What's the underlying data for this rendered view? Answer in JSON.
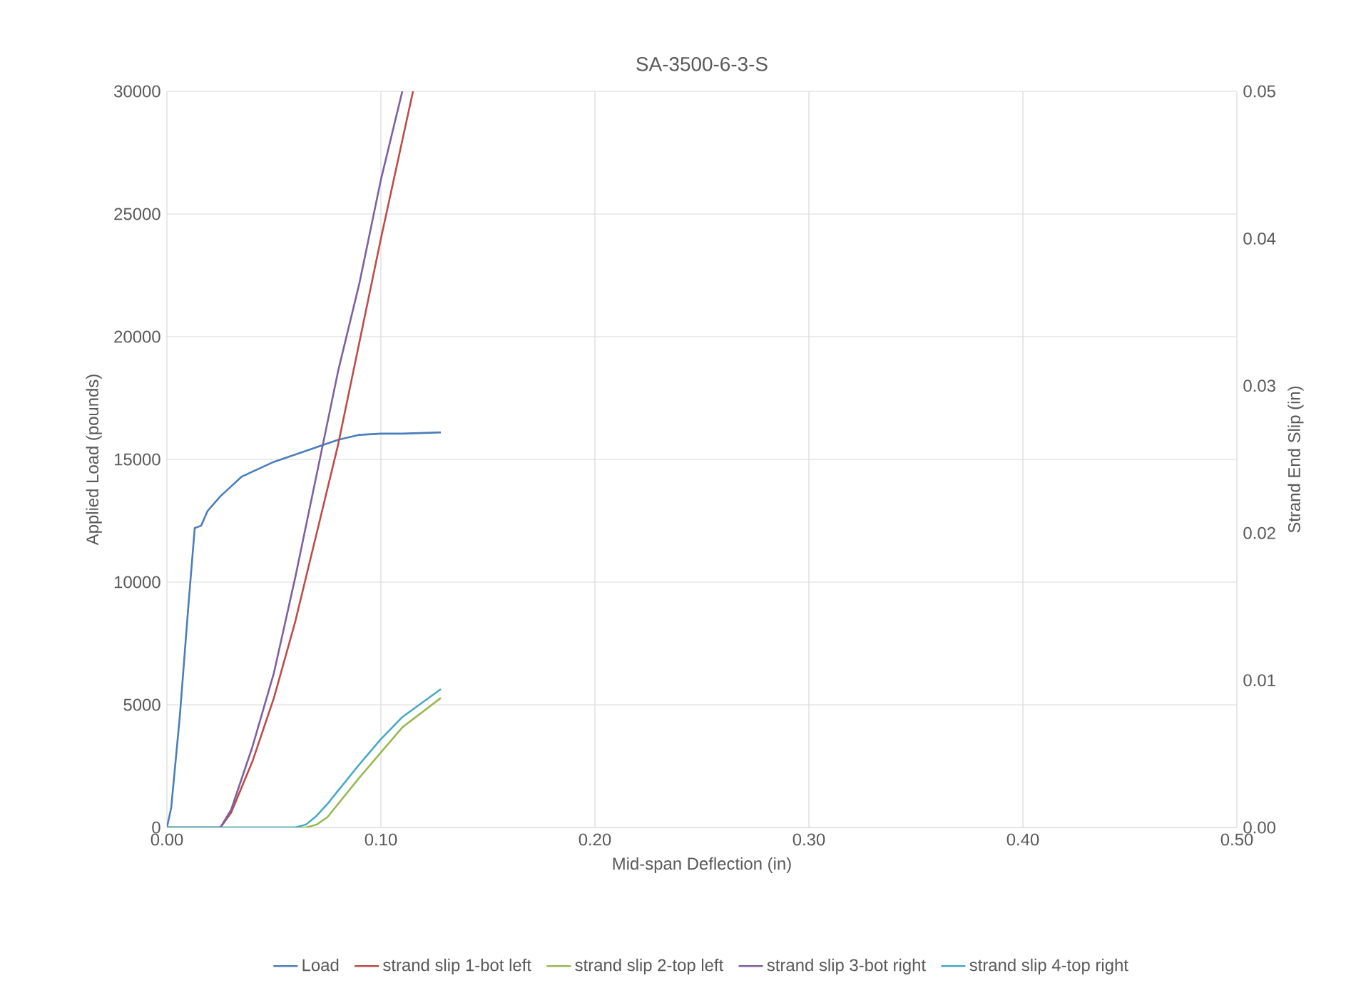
{
  "chart_data": {
    "type": "line",
    "title": "SA-3500-6-3-S",
    "xlabel": "Mid-span Deflection (in)",
    "ylabel": "Applied Load (pounds)",
    "y2label": "Strand End Slip (in)",
    "xlim": [
      0,
      0.5
    ],
    "xticks": [
      {
        "value": 0,
        "label": "0.00"
      },
      {
        "value": 0.1,
        "label": "0.10"
      },
      {
        "value": 0.2,
        "label": "0.20"
      },
      {
        "value": 0.3,
        "label": "0.30"
      },
      {
        "value": 0.4,
        "label": "0.40"
      },
      {
        "value": 0.5,
        "label": "0.50"
      }
    ],
    "ylim": [
      0,
      30000
    ],
    "yticks": [
      0,
      5000,
      10000,
      15000,
      20000,
      25000,
      30000
    ],
    "y2lim": [
      0,
      0.05
    ],
    "y2ticks": [
      {
        "value": 0,
        "label": "0.00"
      },
      {
        "value": 0.01,
        "label": "0.01"
      },
      {
        "value": 0.02,
        "label": "0.02"
      },
      {
        "value": 0.03,
        "label": "0.03"
      },
      {
        "value": 0.04,
        "label": "0.04"
      },
      {
        "value": 0.05,
        "label": "0.05"
      }
    ],
    "grid": true,
    "legend": "bottom",
    "marker": "none",
    "line_style": "solid",
    "series": [
      {
        "name": "Load",
        "color": "#4a7ebb",
        "x": [
          0,
          0.002,
          0.006,
          0.01,
          0.013,
          0.016,
          0.019,
          0.022,
          0.025,
          0.03,
          0.035,
          0.04,
          0.05,
          0.06,
          0.07,
          0.08,
          0.09,
          0.1,
          0.11,
          0.128
        ],
        "values": [
          0,
          800,
          4500,
          9000,
          12200,
          12300,
          12900,
          13200,
          13500,
          13900,
          14300,
          14500,
          14900,
          15200,
          15500,
          15800,
          16000,
          16050,
          16050,
          16100
        ]
      },
      {
        "name": "strand slip 1-bot left",
        "color": "#be4b48",
        "axis": "y2",
        "x": [
          0,
          0.025,
          0.03,
          0.04,
          0.05,
          0.06,
          0.07,
          0.08,
          0.09,
          0.1,
          0.115
        ],
        "values": [
          0,
          0,
          0.001,
          0.0045,
          0.0088,
          0.014,
          0.02,
          0.026,
          0.033,
          0.04,
          0.05
        ]
      },
      {
        "name": "strand slip 2-top left",
        "color": "#98b954",
        "axis": "y2",
        "x": [
          0,
          0.065,
          0.07,
          0.075,
          0.08,
          0.09,
          0.1,
          0.11,
          0.128
        ],
        "values": [
          0,
          0,
          0.0002,
          0.0007,
          0.0016,
          0.0034,
          0.0051,
          0.0068,
          0.0088
        ]
      },
      {
        "name": "strand slip 3-bot right",
        "color": "#7d60a0",
        "axis": "y2",
        "x": [
          0,
          0.025,
          0.03,
          0.04,
          0.05,
          0.06,
          0.07,
          0.08,
          0.09,
          0.1,
          0.11
        ],
        "values": [
          0,
          0,
          0.0012,
          0.0055,
          0.0105,
          0.017,
          0.024,
          0.031,
          0.037,
          0.044,
          0.05
        ]
      },
      {
        "name": "strand slip 4-top right",
        "color": "#46aac5",
        "axis": "y2",
        "x": [
          0,
          0.06,
          0.065,
          0.07,
          0.075,
          0.08,
          0.09,
          0.1,
          0.11,
          0.128
        ],
        "values": [
          0,
          0,
          0.0002,
          0.0008,
          0.0016,
          0.0025,
          0.0043,
          0.006,
          0.0075,
          0.0094
        ]
      }
    ]
  }
}
